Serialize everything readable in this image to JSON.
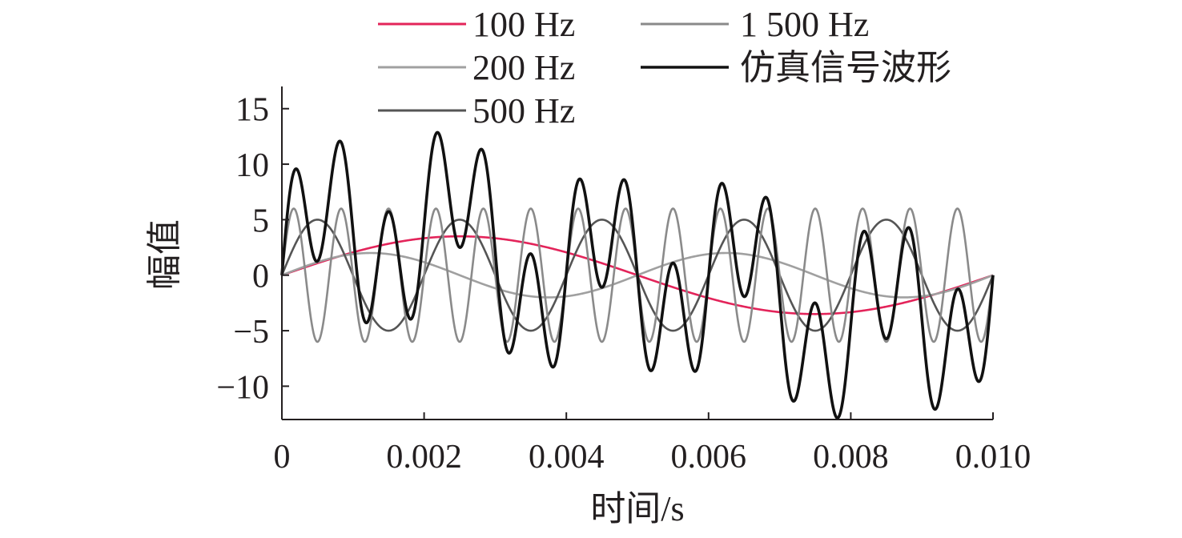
{
  "chart_data": {
    "type": "line",
    "xlabel": "时间/s",
    "ylabel": "幅值",
    "xlim": [
      0,
      0.01
    ],
    "ylim": [
      -13,
      17
    ],
    "grid": false,
    "legend_placement": "top",
    "x_ticks": [
      {
        "value": 0,
        "label": "0"
      },
      {
        "value": 0.002,
        "label": "0.002"
      },
      {
        "value": 0.004,
        "label": "0.004"
      },
      {
        "value": 0.006,
        "label": "0.006"
      },
      {
        "value": 0.008,
        "label": "0.008"
      },
      {
        "value": 0.01,
        "label": "0.010"
      }
    ],
    "y_ticks": [
      {
        "value": 15,
        "label": "15"
      },
      {
        "value": 10,
        "label": "10"
      },
      {
        "value": 5,
        "label": "5"
      },
      {
        "value": 0,
        "label": "0"
      },
      {
        "value": -5,
        "label": "−5"
      },
      {
        "value": -10,
        "label": "−10"
      }
    ],
    "series": [
      {
        "name": "100 Hz",
        "frequency_hz": 100,
        "amplitude": 3.5,
        "color": "#e3245a"
      },
      {
        "name": "200 Hz",
        "frequency_hz": 200,
        "amplitude": 2,
        "color": "#a0a0a0",
        "highlight_color": "#a8c63a"
      },
      {
        "name": "500 Hz",
        "frequency_hz": 500,
        "amplitude": 5,
        "color": "#555555",
        "highlight_color": "#4a4ab8"
      },
      {
        "name": "1 500 Hz",
        "frequency_hz": 1500,
        "amplitude": 6,
        "color": "#8a8a8a",
        "highlight_color": "#c040c0"
      },
      {
        "name": "仿真信号波形",
        "frequency_hz": null,
        "amplitude": null,
        "color": "#111111",
        "is_sum": true
      }
    ]
  }
}
